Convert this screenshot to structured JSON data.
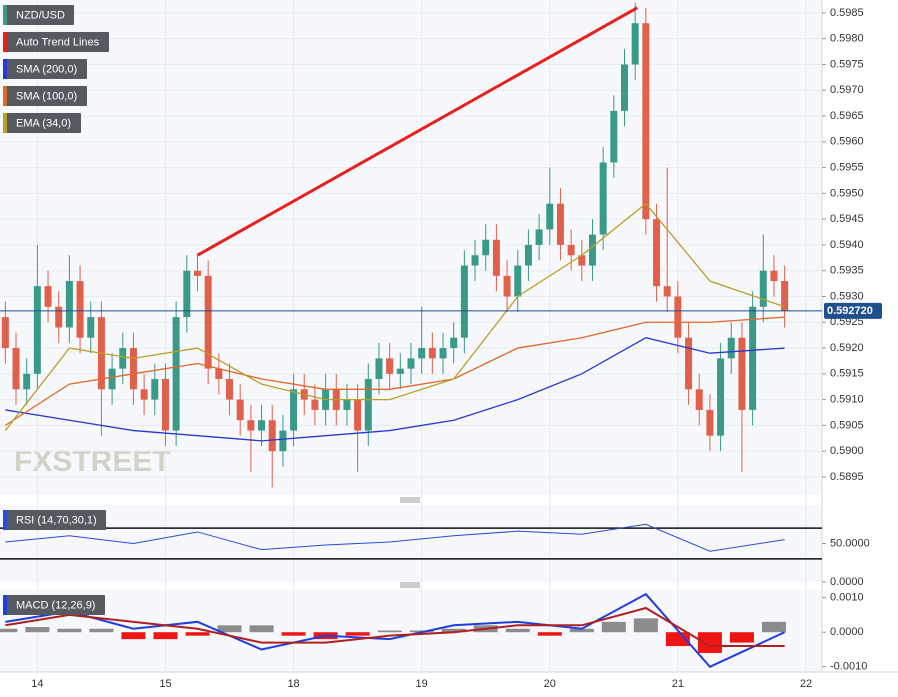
{
  "chart_data": [
    {
      "type": "candlestick",
      "title": "NZD/USD",
      "watermark": "FXSTREET",
      "grid": true,
      "xlim": [
        0,
        77
      ],
      "xticks": [
        {
          "value": 3.5,
          "label": "14"
        },
        {
          "value": 15.5,
          "label": "15"
        },
        {
          "value": 27.5,
          "label": "18"
        },
        {
          "value": 39.5,
          "label": "19"
        },
        {
          "value": 51.5,
          "label": "20"
        },
        {
          "value": 63.5,
          "label": "21"
        },
        {
          "value": 75.5,
          "label": "22"
        }
      ],
      "ylim": [
        0.58915,
        0.59875
      ],
      "yticks": [
        {
          "value": 0.5895,
          "label": "0.5895"
        },
        {
          "value": 0.59,
          "label": "0.5900"
        },
        {
          "value": 0.5905,
          "label": "0.5905"
        },
        {
          "value": 0.591,
          "label": "0.5910"
        },
        {
          "value": 0.5915,
          "label": "0.5915"
        },
        {
          "value": 0.592,
          "label": "0.5920"
        },
        {
          "value": 0.5925,
          "label": "0.5925"
        },
        {
          "value": 0.593,
          "label": "0.5930"
        },
        {
          "value": 0.5935,
          "label": "0.5935"
        },
        {
          "value": 0.594,
          "label": "0.5940"
        },
        {
          "value": 0.5945,
          "label": "0.5945"
        },
        {
          "value": 0.595,
          "label": "0.5950"
        },
        {
          "value": 0.5955,
          "label": "0.5955"
        },
        {
          "value": 0.596,
          "label": "0.5960"
        },
        {
          "value": 0.5965,
          "label": "0.5965"
        },
        {
          "value": 0.597,
          "label": "0.5970"
        },
        {
          "value": 0.5975,
          "label": "0.5975"
        },
        {
          "value": 0.598,
          "label": "0.5980"
        },
        {
          "value": 0.5985,
          "label": "0.5985"
        }
      ],
      "color": "#3a9a8a",
      "up_color": "#3a9a8a",
      "down_color": "#e0604c",
      "x": [
        0.5,
        1.5,
        2.5,
        3.5,
        4.5,
        5.5,
        6.5,
        7.5,
        8.5,
        9.5,
        10.5,
        11.5,
        12.5,
        13.5,
        14.5,
        15.5,
        16.5,
        17.5,
        18.5,
        19.5,
        20.5,
        21.5,
        22.5,
        23.5,
        24.5,
        25.5,
        26.5,
        27.5,
        28.5,
        29.5,
        30.5,
        31.5,
        32.5,
        33.5,
        34.5,
        35.5,
        36.5,
        37.5,
        38.5,
        39.5,
        40.5,
        41.5,
        42.5,
        43.5,
        44.5,
        45.5,
        46.5,
        47.5,
        48.5,
        49.5,
        50.5,
        51.5,
        52.5,
        53.5,
        54.5,
        55.5,
        56.5,
        57.5,
        58.5,
        59.5,
        60.5,
        61.5,
        62.5,
        63.5,
        64.5,
        65.5,
        66.5,
        67.5,
        68.5,
        69.5,
        70.5,
        71.5,
        72.5,
        73.5
      ],
      "open": [
        0.5926,
        0.592,
        0.5912,
        0.5915,
        0.5932,
        0.5928,
        0.5924,
        0.5933,
        0.5922,
        0.5926,
        0.5912,
        0.5916,
        0.592,
        0.5912,
        0.591,
        0.5914,
        0.5904,
        0.5926,
        0.5935,
        0.5934,
        0.5916,
        0.5914,
        0.591,
        0.5906,
        0.5904,
        0.5906,
        0.59,
        0.5904,
        0.5912,
        0.591,
        0.5908,
        0.5912,
        0.5908,
        0.591,
        0.5904,
        0.5914,
        0.5918,
        0.5915,
        0.5916,
        0.5918,
        0.592,
        0.5918,
        0.592,
        0.5922,
        0.5936,
        0.5938,
        0.5941,
        0.5934,
        0.593,
        0.5936,
        0.594,
        0.5943,
        0.5948,
        0.594,
        0.5938,
        0.5936,
        0.5942,
        0.5956,
        0.5966,
        0.5975,
        0.5983,
        0.5945,
        0.5932,
        0.593,
        0.5922,
        0.5912,
        0.5908,
        0.5903,
        0.5918,
        0.5922,
        0.5908,
        0.5928,
        0.5935,
        0.5933
      ],
      "high": [
        0.5929,
        0.5923,
        0.5918,
        0.594,
        0.5935,
        0.5931,
        0.5938,
        0.5936,
        0.5929,
        0.5929,
        0.5919,
        0.5923,
        0.5923,
        0.5915,
        0.5917,
        0.5917,
        0.5929,
        0.5938,
        0.5938,
        0.5937,
        0.5919,
        0.5917,
        0.5913,
        0.5909,
        0.5909,
        0.5909,
        0.5907,
        0.5915,
        0.5915,
        0.5913,
        0.5915,
        0.5915,
        0.5913,
        0.5913,
        0.5917,
        0.5921,
        0.5921,
        0.5919,
        0.5921,
        0.5928,
        0.5923,
        0.5923,
        0.5925,
        0.5939,
        0.5941,
        0.5944,
        0.5944,
        0.5937,
        0.5939,
        0.5943,
        0.5946,
        0.5955,
        0.5951,
        0.5943,
        0.5941,
        0.5945,
        0.5959,
        0.5969,
        0.5978,
        0.5987,
        0.5986,
        0.5948,
        0.5955,
        0.5933,
        0.5925,
        0.5915,
        0.5911,
        0.5921,
        0.5925,
        0.5925,
        0.5931,
        0.5942,
        0.5938,
        0.5936
      ],
      "low": [
        0.5917,
        0.5909,
        0.5909,
        0.5912,
        0.5925,
        0.5921,
        0.5921,
        0.5919,
        0.5919,
        0.5903,
        0.5909,
        0.5913,
        0.5909,
        0.5907,
        0.5907,
        0.5901,
        0.5901,
        0.5923,
        0.5931,
        0.5913,
        0.5911,
        0.5907,
        0.5903,
        0.5896,
        0.5901,
        0.5893,
        0.5897,
        0.5901,
        0.5907,
        0.5905,
        0.5905,
        0.5905,
        0.5905,
        0.5896,
        0.5901,
        0.5911,
        0.5912,
        0.5912,
        0.5913,
        0.5915,
        0.5915,
        0.5915,
        0.5917,
        0.5919,
        0.5933,
        0.5935,
        0.5931,
        0.5927,
        0.5927,
        0.5933,
        0.5937,
        0.594,
        0.5937,
        0.5935,
        0.5933,
        0.5933,
        0.5939,
        0.5953,
        0.5963,
        0.5972,
        0.5942,
        0.5929,
        0.5927,
        0.5919,
        0.5909,
        0.5905,
        0.59,
        0.59,
        0.5915,
        0.5896,
        0.5905,
        0.5925,
        0.593,
        0.5924
      ],
      "close": [
        0.592,
        0.5912,
        0.5915,
        0.5932,
        0.5928,
        0.5924,
        0.5933,
        0.5922,
        0.5926,
        0.5912,
        0.5916,
        0.592,
        0.5912,
        0.591,
        0.5914,
        0.5904,
        0.5926,
        0.5935,
        0.5934,
        0.5916,
        0.5914,
        0.591,
        0.5906,
        0.5904,
        0.5906,
        0.59,
        0.5904,
        0.5912,
        0.591,
        0.5908,
        0.5912,
        0.5908,
        0.591,
        0.5904,
        0.5914,
        0.5918,
        0.5915,
        0.5916,
        0.5918,
        0.592,
        0.5918,
        0.592,
        0.5922,
        0.5936,
        0.5938,
        0.5941,
        0.5934,
        0.593,
        0.5936,
        0.594,
        0.5943,
        0.5948,
        0.594,
        0.5938,
        0.5936,
        0.5942,
        0.5956,
        0.5966,
        0.5975,
        0.5983,
        0.5945,
        0.5932,
        0.593,
        0.5922,
        0.5912,
        0.5908,
        0.5903,
        0.5918,
        0.5922,
        0.5908,
        0.5928,
        0.5935,
        0.5933,
        0.59272
      ],
      "series": [
        {
          "name": "Auto Trend Lines",
          "color": "#e82020",
          "x": [
            18.5,
            59.7
          ],
          "values": [
            0.5938,
            0.5986
          ]
        },
        {
          "name": "SMA (200,0)",
          "color": "#2838d0",
          "x": [
            0.5,
            6.5,
            12.5,
            18.5,
            24.5,
            30.5,
            36.5,
            42.5,
            48.5,
            54.5,
            60.5,
            66.5,
            73.5
          ],
          "values": [
            0.5908,
            0.5906,
            0.5904,
            0.5903,
            0.5902,
            0.5903,
            0.5904,
            0.5906,
            0.591,
            0.5915,
            0.5922,
            0.5919,
            0.592
          ]
        },
        {
          "name": "SMA (100,0)",
          "color": "#e0682a",
          "x": [
            0.5,
            6.5,
            12.5,
            18.5,
            24.5,
            30.5,
            36.5,
            42.5,
            48.5,
            54.5,
            60.5,
            66.5,
            73.5
          ],
          "values": [
            0.5905,
            0.5913,
            0.5915,
            0.5917,
            0.5914,
            0.5912,
            0.5912,
            0.5914,
            0.592,
            0.5922,
            0.5925,
            0.5925,
            0.5926
          ]
        },
        {
          "name": "EMA (34,0)",
          "color": "#b8a028",
          "x": [
            0.5,
            6.5,
            12.5,
            18.5,
            24.5,
            30.5,
            36.5,
            42.5,
            48.5,
            54.5,
            60.5,
            66.5,
            73.5
          ],
          "values": [
            0.5904,
            0.592,
            0.5918,
            0.592,
            0.5913,
            0.591,
            0.591,
            0.5914,
            0.593,
            0.5938,
            0.5948,
            0.5933,
            0.5928
          ]
        }
      ],
      "last_price": {
        "value": 0.59272,
        "label": "0.592720"
      },
      "last_color": "#1f4f8f"
    },
    {
      "type": "line",
      "title": "RSI (14,70,30,1)",
      "xlim": [
        0,
        77
      ],
      "ylim": [
        0,
        100
      ],
      "yticks": [
        {
          "value": 50,
          "label": "50.0000"
        },
        {
          "value": 0,
          "label": "0.0000"
        }
      ],
      "levels": [
        70,
        30
      ],
      "series": [
        {
          "color": "#2a4ad8",
          "x": [
            0.5,
            6.5,
            12.5,
            18.5,
            24.5,
            30.5,
            36.5,
            42.5,
            48.5,
            54.5,
            60.5,
            66.5,
            73.5
          ],
          "values": [
            52,
            60,
            50,
            65,
            42,
            48,
            52,
            60,
            66,
            62,
            75,
            40,
            55
          ]
        }
      ]
    },
    {
      "type": "macd",
      "title": "MACD (12,26,9)",
      "xlim": [
        0,
        77
      ],
      "ylim": [
        -0.00115,
        0.00122
      ],
      "yticks": [
        {
          "value": 0.001,
          "label": "0.0010"
        },
        {
          "value": 0,
          "label": "0.0000"
        },
        {
          "value": -0.001,
          "label": "-0.0010"
        }
      ],
      "series": [
        {
          "color": "#1e3ee0",
          "x": [
            0.5,
            6.5,
            12.5,
            18.5,
            24.5,
            30.5,
            36.5,
            42.5,
            48.5,
            54.5,
            60.5,
            66.5,
            73.5
          ],
          "values": [
            0.0003,
            0.0006,
            0.0001,
            0.0003,
            -0.0005,
            -0.0001,
            -0.0002,
            0.0002,
            0.0003,
            0.0001,
            0.0011,
            -0.001,
            0.0
          ]
        },
        {
          "color": "#b02020",
          "x": [
            0.5,
            6.5,
            12.5,
            18.5,
            24.5,
            30.5,
            36.5,
            42.5,
            48.5,
            54.5,
            60.5,
            66.5,
            73.5
          ],
          "values": [
            0.0002,
            0.0005,
            0.0003,
            0.0001,
            -0.0003,
            -0.0003,
            -0.0001,
            0.0,
            0.0002,
            0.0002,
            0.0007,
            -0.0004,
            -0.0004
          ]
        }
      ],
      "histogram": {
        "up_color": "#8c8c8c",
        "down_color": "#ee1515",
        "x": [
          0.5,
          3.5,
          6.5,
          9.5,
          12.5,
          15.5,
          18.5,
          21.5,
          24.5,
          27.5,
          30.5,
          33.5,
          36.5,
          39.5,
          42.5,
          45.5,
          48.5,
          51.5,
          54.5,
          57.5,
          60.5,
          63.5,
          66.5,
          69.5,
          72.5
        ],
        "values": [
          0.0001,
          0.00015,
          0.0001,
          0.0001,
          -0.0002,
          -0.0002,
          -0.0001,
          0.0002,
          0.0002,
          -0.0001,
          -0.0002,
          -0.0001,
          5e-05,
          5e-05,
          0.0001,
          0.0002,
          0.0001,
          -0.0001,
          0.0001,
          0.0003,
          0.0004,
          -0.0004,
          -0.0006,
          -0.0003,
          0.0003
        ]
      }
    }
  ]
}
